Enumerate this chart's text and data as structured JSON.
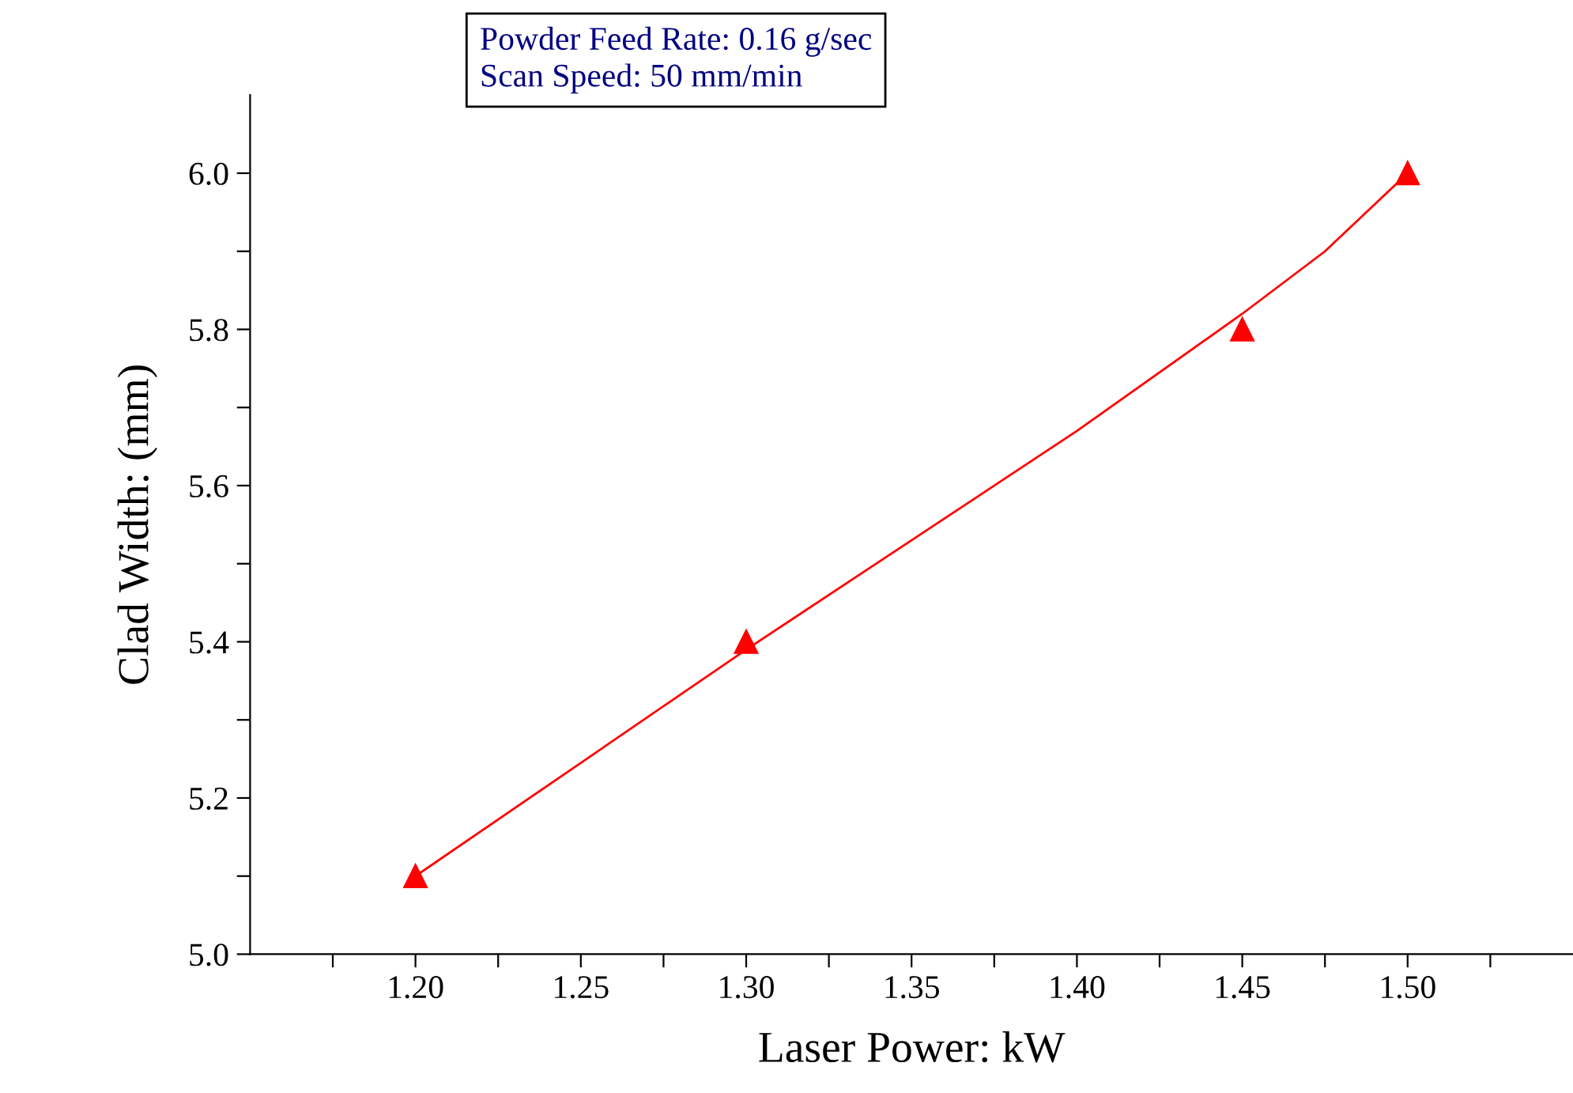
{
  "chart_data": {
    "type": "scatter",
    "xlabel": "Laser Power: kW",
    "ylabel": "Clad Width: (mm)",
    "annotations": [
      "Powder Feed Rate: 0.16 g/sec",
      "Scan Speed: 50 mm/min"
    ],
    "series": [
      {
        "color": "#ff0000",
        "marker": "triangle",
        "x": [
          1.2,
          1.3,
          1.45,
          1.5
        ],
        "values": [
          5.1,
          5.4,
          5.8,
          6.0
        ]
      },
      {
        "type": "line",
        "color": "#ff0000",
        "marker": "none",
        "x": [
          1.2,
          1.25,
          1.3,
          1.35,
          1.4,
          1.45,
          1.475,
          1.5
        ],
        "values": [
          5.1,
          5.245,
          5.39,
          5.53,
          5.67,
          5.82,
          5.9,
          6.0
        ]
      }
    ],
    "xlim": [
      1.15,
      1.55
    ],
    "ylim": [
      5.0,
      6.1
    ],
    "xticks": [
      {
        "value": 1.175,
        "label": null
      },
      {
        "value": 1.2,
        "label": "1.20"
      },
      {
        "value": 1.225,
        "label": null
      },
      {
        "value": 1.25,
        "label": "1.25"
      },
      {
        "value": 1.275,
        "label": null
      },
      {
        "value": 1.3,
        "label": "1.30"
      },
      {
        "value": 1.325,
        "label": null
      },
      {
        "value": 1.35,
        "label": "1.35"
      },
      {
        "value": 1.375,
        "label": null
      },
      {
        "value": 1.4,
        "label": "1.40"
      },
      {
        "value": 1.425,
        "label": null
      },
      {
        "value": 1.45,
        "label": "1.45"
      },
      {
        "value": 1.475,
        "label": null
      },
      {
        "value": 1.5,
        "label": "1.50"
      },
      {
        "value": 1.525,
        "label": null
      }
    ],
    "yticks": [
      {
        "value": 5.0,
        "label": "5.0"
      },
      {
        "value": 5.1,
        "label": null
      },
      {
        "value": 5.2,
        "label": "5.2"
      },
      {
        "value": 5.3,
        "label": null
      },
      {
        "value": 5.4,
        "label": "5.4"
      },
      {
        "value": 5.5,
        "label": null
      },
      {
        "value": 5.6,
        "label": "5.6"
      },
      {
        "value": 5.7,
        "label": null
      },
      {
        "value": 5.8,
        "label": "5.8"
      },
      {
        "value": 5.9,
        "label": null
      },
      {
        "value": 6.0,
        "label": "6.0"
      }
    ],
    "grid": false,
    "legend": false
  }
}
